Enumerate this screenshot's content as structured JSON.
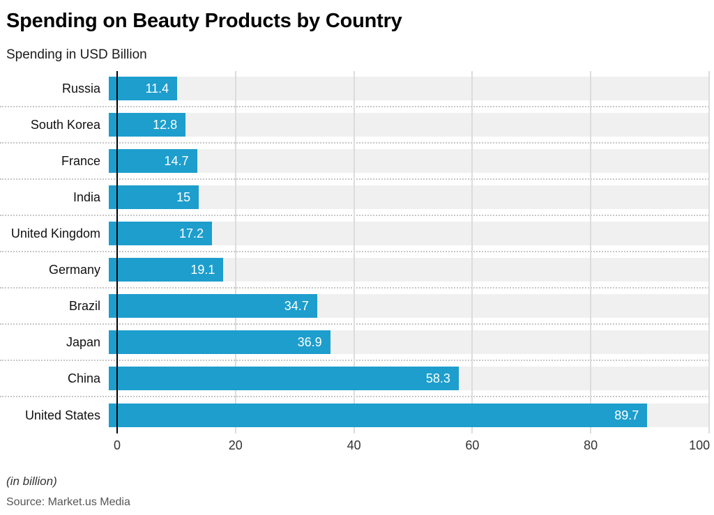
{
  "header": {
    "title": "Spending on Beauty Products by Country",
    "subtitle": "Spending in USD Billion"
  },
  "chart_data": {
    "type": "bar",
    "orientation": "horizontal",
    "title": "Spending on Beauty Products by Country",
    "subtitle": "Spending in USD Billion",
    "xlabel": "",
    "ylabel": "",
    "categories": [
      "Russia",
      "South Korea",
      "France",
      "India",
      "United Kingdom",
      "Germany",
      "Brazil",
      "Japan",
      "China",
      "United States"
    ],
    "values": [
      11.4,
      12.8,
      14.7,
      15,
      17.2,
      19.1,
      34.7,
      36.9,
      58.3,
      89.7
    ],
    "value_labels": [
      "11.4",
      "12.8",
      "14.7",
      "15",
      "17.2",
      "19.1",
      "34.7",
      "36.9",
      "58.3",
      "89.7"
    ],
    "xlim": [
      0,
      100
    ],
    "x_ticks": [
      0,
      20,
      40,
      60,
      80,
      100
    ],
    "grid": true,
    "legend": "none",
    "bar_color": "#1d9ecd",
    "track_color": "#f0f0f0",
    "gridline_color": "#dcdcdc",
    "value_label_color": "#ffffff"
  },
  "footer": {
    "note": "(in billion)",
    "source": "Source: Market.us Media"
  }
}
